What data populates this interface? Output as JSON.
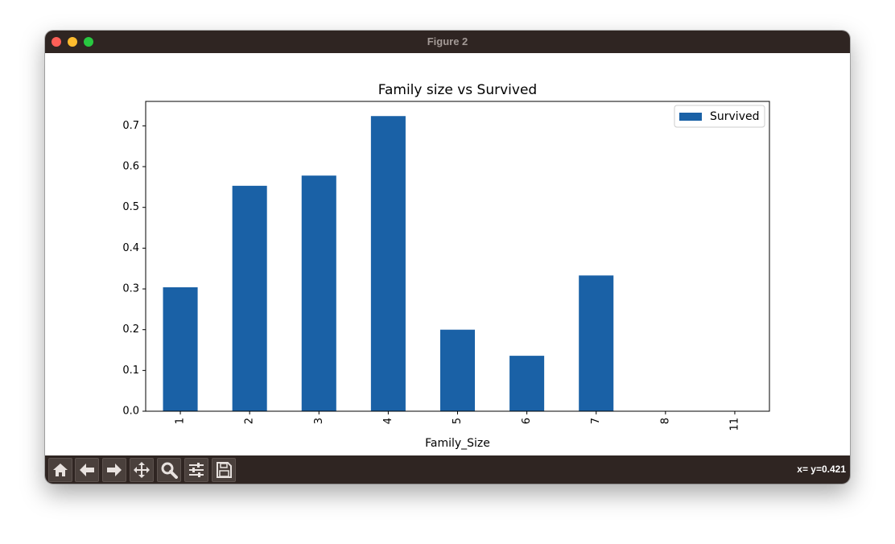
{
  "window": {
    "title": "Figure 2"
  },
  "toolbar": {
    "buttons": [
      "home-icon",
      "back-icon",
      "forward-icon",
      "pan-icon",
      "zoom-icon",
      "configure-icon",
      "save-icon"
    ],
    "coords": "x= y=0.421"
  },
  "colors": {
    "bar": "#1a61a6",
    "chrome": "#2f2522"
  },
  "chart_data": {
    "type": "bar",
    "title": "Family size vs Survived",
    "xlabel": "Family_Size",
    "ylabel": "",
    "categories": [
      "1",
      "2",
      "3",
      "4",
      "5",
      "6",
      "7",
      "8",
      "11"
    ],
    "series": [
      {
        "name": "Survived",
        "values": [
          0.304,
          0.553,
          0.578,
          0.724,
          0.2,
          0.136,
          0.333,
          0.0,
          0.0
        ]
      }
    ],
    "ylim": [
      0,
      0.76
    ],
    "yticks": [
      "0.0",
      "0.1",
      "0.2",
      "0.3",
      "0.4",
      "0.5",
      "0.6",
      "0.7"
    ],
    "grid": false,
    "legend": "top-right"
  }
}
